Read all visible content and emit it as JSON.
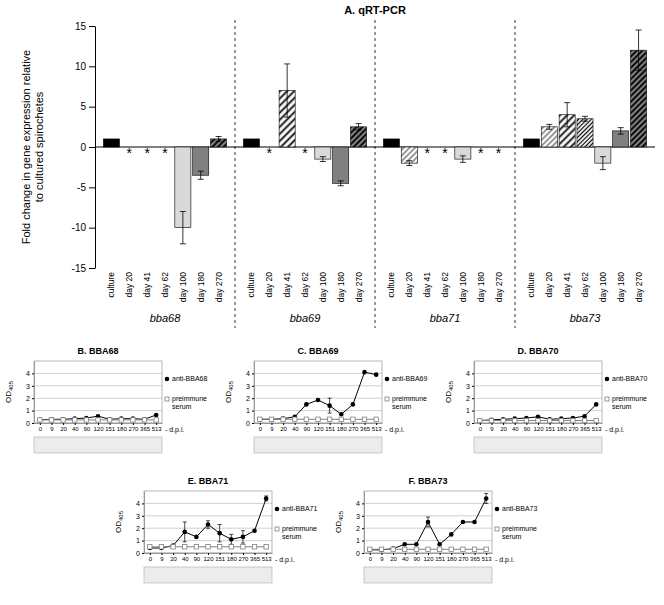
{
  "chart_data": [
    {
      "type": "bar",
      "title": "A. qRT-PCR",
      "ylabel": "Fold change in gene expression relative to cultured spirochetes",
      "categories": [
        "bba68",
        "bba69",
        "bba71",
        "bba73"
      ],
      "series": [
        {
          "name": "culture",
          "color": "#000000",
          "values": [
            1,
            1,
            1,
            1
          ],
          "errors": [
            null,
            null,
            null,
            null
          ]
        },
        {
          "name": "day 20",
          "color": "#ffffff",
          "values": [
            null,
            null,
            -2,
            2.5
          ],
          "errors": [
            null,
            null,
            0.3,
            0.3
          ]
        },
        {
          "name": "day 41",
          "color": "#ffffff",
          "values": [
            null,
            7,
            null,
            4
          ],
          "errors": [
            null,
            3.3,
            null,
            1.5
          ]
        },
        {
          "name": "day 62",
          "color": "#ffffff",
          "values": [
            null,
            null,
            null,
            3.5
          ],
          "errors": [
            null,
            null,
            null,
            0.3
          ]
        },
        {
          "name": "day 100",
          "color": "#d9d9d9",
          "values": [
            -10,
            -1.5,
            -1.5,
            -2
          ],
          "errors": [
            2,
            0.3,
            0.4,
            0.8
          ]
        },
        {
          "name": "day 180",
          "color": "#808080",
          "values": [
            -3.5,
            -4.5,
            null,
            2
          ],
          "errors": [
            0.5,
            0.3,
            null,
            0.4
          ]
        },
        {
          "name": "day 270",
          "color": "#808080",
          "values": [
            1,
            2.5,
            null,
            12
          ],
          "errors": [
            0.3,
            0.4,
            null,
            2.5
          ]
        }
      ],
      "annotations": [
        {
          "text": "*",
          "category": "bba68",
          "series": "day 20"
        },
        {
          "text": "*",
          "category": "bba68",
          "series": "day 41"
        },
        {
          "text": "*",
          "category": "bba68",
          "series": "day 62"
        },
        {
          "text": "*",
          "category": "bba69",
          "series": "day 20"
        },
        {
          "text": "*",
          "category": "bba69",
          "series": "day 62"
        },
        {
          "text": "*",
          "category": "bba71",
          "series": "day 41"
        },
        {
          "text": "*",
          "category": "bba71",
          "series": "day 62"
        },
        {
          "text": "*",
          "category": "bba71",
          "series": "day 180"
        },
        {
          "text": "*",
          "category": "bba71",
          "series": "day 270"
        }
      ],
      "ylim": [
        -15,
        15
      ],
      "yticks": [
        -15,
        -10,
        -5,
        0,
        5,
        10,
        15
      ],
      "grid": false
    },
    {
      "type": "line",
      "title": "B. BBA68",
      "ylabel": "OD405",
      "xlabel": "- d.p.i.",
      "categories": [
        "0",
        "9",
        "20",
        "40",
        "90",
        "120",
        "151",
        "180",
        "270",
        "365",
        "513"
      ],
      "series": [
        {
          "name": "anti-BBA68",
          "color": "#000000",
          "marker": "circle",
          "line_style": "solid",
          "values": [
            0.25,
            0.3,
            0.3,
            0.35,
            0.4,
            0.55,
            0.3,
            0.35,
            0.35,
            0.3,
            0.65
          ]
        },
        {
          "name": "preimmune serum",
          "color": "#808080",
          "marker": "square",
          "line_style": "solid",
          "values": [
            0.25,
            0.25,
            0.25,
            0.25,
            0.25,
            0.25,
            0.25,
            0.25,
            0.25,
            0.25,
            0.25
          ]
        }
      ],
      "ylim": [
        0,
        5
      ],
      "yticks": [
        0,
        1,
        2,
        3,
        4
      ],
      "grid": true,
      "legend": "right"
    },
    {
      "type": "line",
      "title": "C. BBA69",
      "ylabel": "OD405",
      "xlabel": "- d.p.i.",
      "categories": [
        "0",
        "9",
        "20",
        "40",
        "90",
        "120",
        "151",
        "180",
        "270",
        "365",
        "513"
      ],
      "series": [
        {
          "name": "anti-BBA69",
          "color": "#000000",
          "marker": "circle",
          "line_style": "solid",
          "values": [
            0.3,
            0.3,
            0.35,
            0.5,
            1.5,
            1.85,
            1.4,
            0.7,
            1.5,
            4.1,
            3.9
          ],
          "errors": [
            null,
            null,
            null,
            null,
            null,
            null,
            0.6,
            null,
            null,
            null,
            null
          ]
        },
        {
          "name": "preimmune serum",
          "color": "#808080",
          "marker": "square",
          "line_style": "solid",
          "values": [
            0.3,
            0.3,
            0.3,
            0.3,
            0.3,
            0.3,
            0.3,
            0.3,
            0.3,
            0.3,
            0.3
          ]
        }
      ],
      "ylim": [
        0,
        5
      ],
      "yticks": [
        0,
        1,
        2,
        3,
        4
      ],
      "grid": true,
      "legend": "right"
    },
    {
      "type": "line",
      "title": "D. BBA70",
      "ylabel": "OD405",
      "xlabel": "- d.p.i.",
      "categories": [
        "0",
        "9",
        "20",
        "40",
        "90",
        "120",
        "151",
        "180",
        "270",
        "365",
        "513"
      ],
      "series": [
        {
          "name": "anti-BBA70",
          "color": "#000000",
          "marker": "circle",
          "line_style": "solid",
          "values": [
            0.2,
            0.25,
            0.3,
            0.35,
            0.4,
            0.5,
            0.3,
            0.35,
            0.4,
            0.55,
            1.5
          ]
        },
        {
          "name": "preimmune serum",
          "color": "#808080",
          "marker": "square",
          "line_style": "solid",
          "values": [
            0.2,
            0.2,
            0.2,
            0.2,
            0.2,
            0.2,
            0.2,
            0.2,
            0.2,
            0.2,
            0.2
          ]
        }
      ],
      "ylim": [
        0,
        5
      ],
      "yticks": [
        0,
        1,
        2,
        3,
        4
      ],
      "grid": true,
      "legend": "right"
    },
    {
      "type": "line",
      "title": "E. BBA71",
      "ylabel": "OD405",
      "xlabel": "- d.p.i.",
      "categories": [
        "0",
        "9",
        "20",
        "40",
        "90",
        "120",
        "151",
        "180",
        "270",
        "365",
        "513"
      ],
      "series": [
        {
          "name": "anti-BBA71",
          "color": "#000000",
          "marker": "circle",
          "line_style": "solid",
          "values": [
            0.4,
            0.4,
            0.6,
            1.7,
            1.3,
            2.3,
            1.6,
            1.1,
            1.3,
            1.8,
            4.4
          ],
          "errors": [
            null,
            null,
            null,
            0.8,
            null,
            0.3,
            0.7,
            0.4,
            0.5,
            null,
            0.2
          ]
        },
        {
          "name": "preimmune serum",
          "color": "#808080",
          "marker": "square",
          "line_style": "solid",
          "values": [
            0.5,
            0.5,
            0.5,
            0.5,
            0.5,
            0.5,
            0.5,
            0.5,
            0.5,
            0.5,
            0.5
          ]
        }
      ],
      "ylim": [
        0,
        5
      ],
      "yticks": [
        0,
        1,
        2,
        3,
        4
      ],
      "grid": true,
      "legend": "right"
    },
    {
      "type": "line",
      "title": "F. BBA73",
      "ylabel": "OD405",
      "xlabel": "- d.p.i.",
      "categories": [
        "0",
        "9",
        "20",
        "40",
        "90",
        "120",
        "151",
        "180",
        "270",
        "365",
        "513"
      ],
      "series": [
        {
          "name": "anti-BBA73",
          "color": "#000000",
          "marker": "circle",
          "line_style": "solid",
          "values": [
            0.25,
            0.25,
            0.35,
            0.7,
            0.7,
            2.5,
            0.7,
            1.5,
            2.5,
            2.5,
            4.4
          ],
          "errors": [
            null,
            null,
            null,
            null,
            null,
            0.4,
            null,
            null,
            null,
            null,
            0.4
          ]
        },
        {
          "name": "preimmune serum",
          "color": "#808080",
          "marker": "square",
          "line_style": "solid",
          "values": [
            0.3,
            0.3,
            0.3,
            0.3,
            0.3,
            0.3,
            0.3,
            0.3,
            0.3,
            0.3,
            0.3
          ]
        }
      ],
      "ylim": [
        0,
        5
      ],
      "yticks": [
        0,
        1,
        2,
        3,
        4
      ],
      "grid": true,
      "legend": "right"
    }
  ]
}
